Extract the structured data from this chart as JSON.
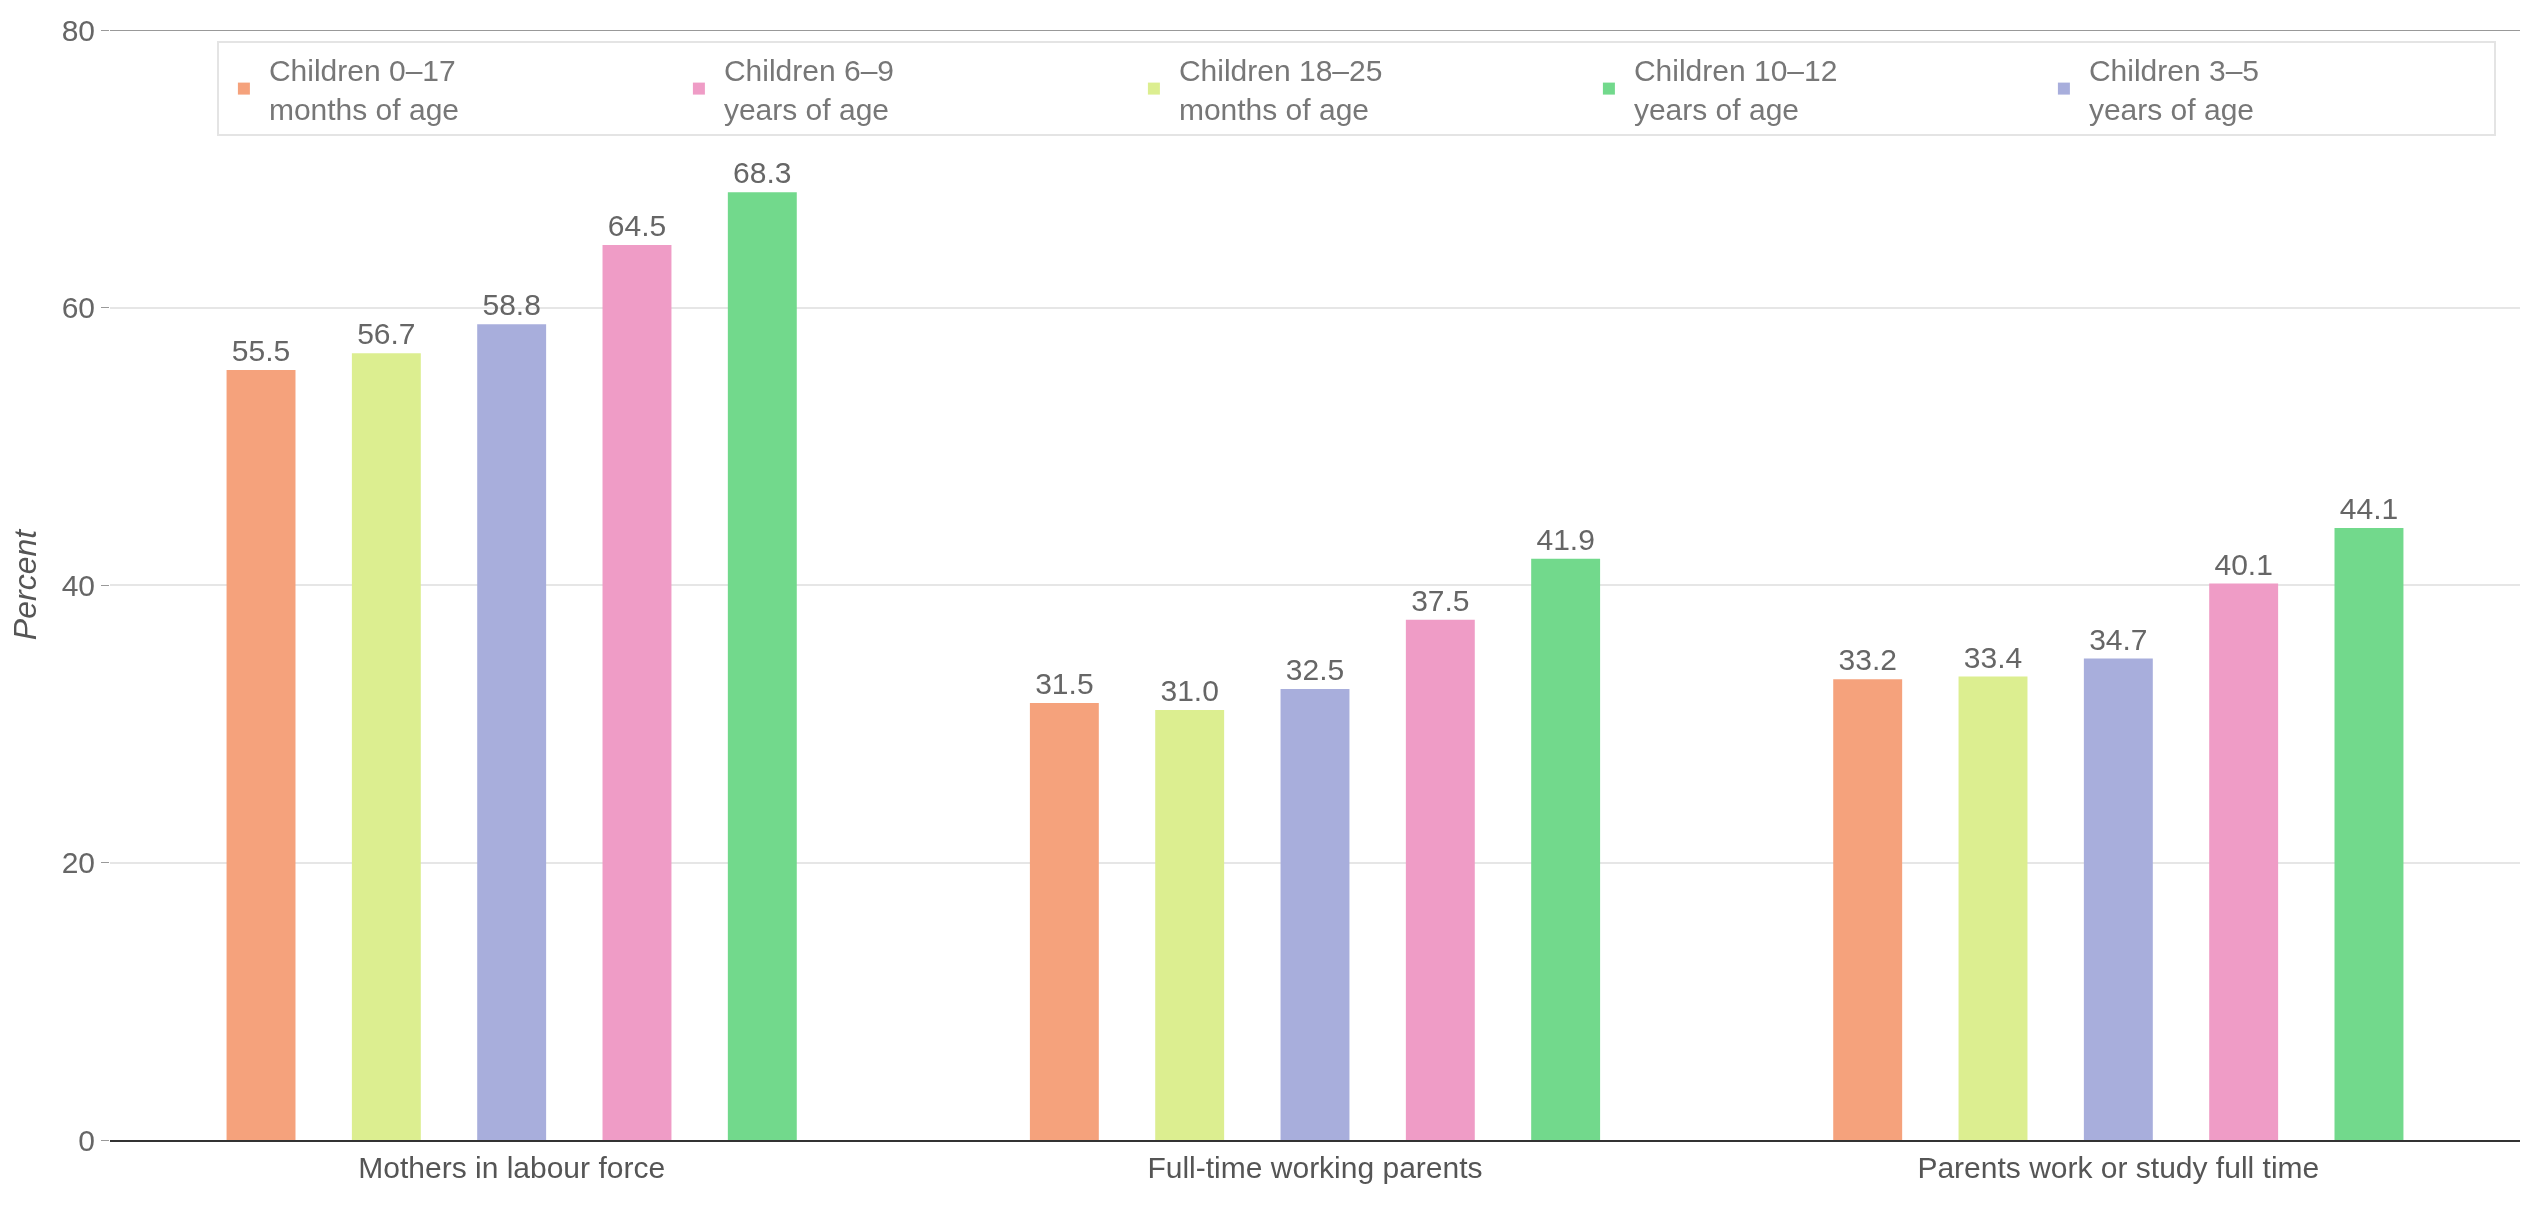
{
  "chart_data": {
    "type": "bar",
    "ylabel": "Percent",
    "categories": [
      "Mothers in labour force",
      "Full-time working parents",
      "Parents work or study full time"
    ],
    "series": [
      {
        "name": "Children 0–17 months of age",
        "color": "#f5a27c",
        "values": [
          55.5,
          31.5,
          33.2
        ],
        "value_labels": [
          "55.5",
          "31.5",
          "33.2"
        ]
      },
      {
        "name": "Children 18–25 months of age",
        "color": "#dcee90",
        "values": [
          56.7,
          31.0,
          33.4
        ],
        "value_labels": [
          "56.7",
          "31.0",
          "33.4"
        ]
      },
      {
        "name": "Children 3–5 years of age",
        "color": "#a8aedc",
        "values": [
          58.8,
          32.5,
          34.7
        ],
        "value_labels": [
          "58.8",
          "32.5",
          "34.7"
        ]
      },
      {
        "name": "Children 6–9 years of age",
        "color": "#ef9cc6",
        "values": [
          64.5,
          37.5,
          40.1
        ],
        "value_labels": [
          "64.5",
          "37.5",
          "40.1"
        ]
      },
      {
        "name": "Children 10–12 years of age",
        "color": "#72d98c",
        "values": [
          68.3,
          41.9,
          44.1
        ],
        "value_labels": [
          "68.3",
          "41.9",
          "44.1"
        ]
      }
    ],
    "ylim": [
      0,
      80
    ],
    "yticks": [
      0,
      20,
      40,
      60,
      80
    ],
    "grid": "y",
    "legend": "top right"
  }
}
